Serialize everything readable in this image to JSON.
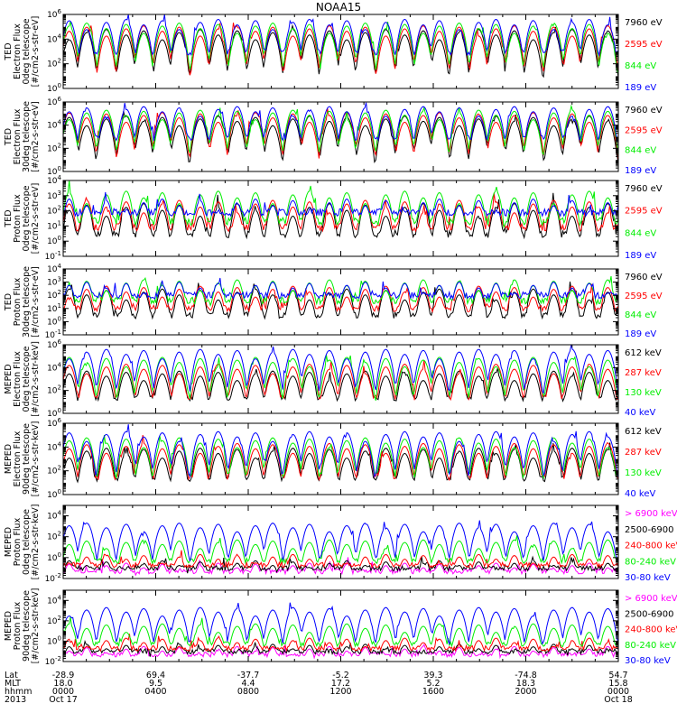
{
  "title": "NOAA15",
  "colors": {
    "black": "#000000",
    "red": "#ff0000",
    "green": "#00ee00",
    "blue": "#0000ff",
    "magenta": "#ff00ff"
  },
  "chart_data": [
    {
      "type": "line",
      "ylabel_lines": [
        "TED",
        "Electron Flux",
        "0deg telescope",
        "[#/cm2-s-str-eV]"
      ],
      "y_log": true,
      "ylim": [
        1,
        1000000
      ],
      "y_ticks": [
        1,
        100,
        10000,
        1000000
      ],
      "y_tick_labels": [
        "10^0",
        "10^2",
        "10^4",
        "10^6"
      ],
      "series": [
        {
          "name": "7960 eV",
          "color": "#000000",
          "baseline": 4,
          "peak": 60000
        },
        {
          "name": "2595 eV",
          "color": "#ff0000",
          "baseline": 10,
          "peak": 120000
        },
        {
          "name": "844 eV",
          "color": "#00ee00",
          "baseline": 20,
          "peak": 200000
        },
        {
          "name": "189 eV",
          "color": "#0000ff",
          "baseline": 800,
          "peak": 400000
        }
      ]
    },
    {
      "type": "line",
      "ylabel_lines": [
        "TED",
        "Electron Flux",
        "30deg telescope",
        "[#/cm2-s-str-eV]"
      ],
      "y_log": true,
      "ylim": [
        1,
        1000000
      ],
      "y_ticks": [
        1,
        100,
        10000,
        1000000
      ],
      "y_tick_labels": [
        "10^0",
        "10^2",
        "10^4",
        "10^6"
      ],
      "series": [
        {
          "name": "7960 eV",
          "color": "#000000",
          "baseline": 4,
          "peak": 60000
        },
        {
          "name": "2595 eV",
          "color": "#ff0000",
          "baseline": 10,
          "peak": 120000
        },
        {
          "name": "844 eV",
          "color": "#00ee00",
          "baseline": 25,
          "peak": 200000
        },
        {
          "name": "189 eV",
          "color": "#0000ff",
          "baseline": 700,
          "peak": 400000
        }
      ]
    },
    {
      "type": "line",
      "ylabel_lines": [
        "TED",
        "Proton Flux",
        "0deg telescope",
        "[#/cm2-s-str-eV]"
      ],
      "y_log": true,
      "ylim": [
        0.1,
        10000
      ],
      "y_ticks": [
        0.1,
        1,
        10,
        100,
        1000,
        10000
      ],
      "y_tick_labels": [
        "10^-1",
        "10^0",
        "10^1",
        "10^2",
        "10^3",
        "10^4"
      ],
      "series": [
        {
          "name": "7960 eV",
          "color": "#000000",
          "baseline": 3,
          "peak": 300
        },
        {
          "name": "2595 eV",
          "color": "#ff0000",
          "baseline": 8,
          "peak": 500
        },
        {
          "name": "844 eV",
          "color": "#00ee00",
          "baseline": 20,
          "peak": 2000
        },
        {
          "name": "189 eV",
          "color": "#0000ff",
          "baseline": 80,
          "peak": 600
        }
      ]
    },
    {
      "type": "line",
      "ylabel_lines": [
        "TED",
        "Proton Flux",
        "30deg telescope",
        "[#/cm2-s-str-eV]"
      ],
      "y_log": true,
      "ylim": [
        0.1,
        10000
      ],
      "y_ticks": [
        0.1,
        1,
        10,
        100,
        1000,
        10000
      ],
      "y_tick_labels": [
        "10^-1",
        "10^0",
        "10^1",
        "10^2",
        "10^3",
        "10^4"
      ],
      "series": [
        {
          "name": "7960 eV",
          "color": "#000000",
          "baseline": 3,
          "peak": 300
        },
        {
          "name": "2595 eV",
          "color": "#ff0000",
          "baseline": 10,
          "peak": 500
        },
        {
          "name": "844 eV",
          "color": "#00ee00",
          "baseline": 40,
          "peak": 1500
        },
        {
          "name": "189 eV",
          "color": "#0000ff",
          "baseline": 100,
          "peak": 1000
        }
      ]
    },
    {
      "type": "line",
      "ylabel_lines": [
        "MEPED",
        "Electron Flux",
        "0deg telescope",
        "[#/cm2-s-str-keV]"
      ],
      "y_log": true,
      "ylim": [
        1,
        1000000
      ],
      "y_ticks": [
        1,
        100,
        10000,
        1000000
      ],
      "y_tick_labels": [
        "10^0",
        "10^2",
        "10^4",
        "10^6"
      ],
      "series": [
        {
          "name": "612 keV",
          "color": "#000000",
          "baseline": 20,
          "peak": 5000
        },
        {
          "name": "287 keV",
          "color": "#ff0000",
          "baseline": 25,
          "peak": 20000
        },
        {
          "name": "130 keV",
          "color": "#00ee00",
          "baseline": 30,
          "peak": 80000
        },
        {
          "name": "40 keV",
          "color": "#0000ff",
          "baseline": 30,
          "peak": 400000
        }
      ]
    },
    {
      "type": "line",
      "ylabel_lines": [
        "MEPED",
        "Electron Flux",
        "90deg telescope",
        "[#/cm2-s-str-keV]"
      ],
      "y_log": true,
      "ylim": [
        1,
        1000000
      ],
      "y_ticks": [
        1,
        100,
        10000,
        1000000
      ],
      "y_tick_labels": [
        "10^0",
        "10^2",
        "10^4",
        "10^6"
      ],
      "series": [
        {
          "name": "612 keV",
          "color": "#000000",
          "baseline": 20,
          "peak": 8000
        },
        {
          "name": "287 keV",
          "color": "#ff0000",
          "baseline": 30,
          "peak": 20000
        },
        {
          "name": "130 keV",
          "color": "#00ee00",
          "baseline": 40,
          "peak": 60000
        },
        {
          "name": "40 keV",
          "color": "#0000ff",
          "baseline": 40,
          "peak": 200000
        }
      ]
    },
    {
      "type": "line",
      "ylabel_lines": [
        "MEPED",
        "Proton Flux",
        "0deg telescope",
        "[#/cm2-s-str-keV]"
      ],
      "y_log": true,
      "ylim": [
        0.01,
        100000
      ],
      "y_ticks": [
        0.01,
        1,
        100,
        10000
      ],
      "y_tick_labels": [
        "10^-2",
        "10^0",
        "10^2",
        "10^4"
      ],
      "series": [
        {
          "name": "> 6900 keV",
          "color": "#ff00ff",
          "baseline": 0.05,
          "peak": 0.3
        },
        {
          "name": "2500-6900",
          "color": "#000000",
          "baseline": 0.1,
          "peak": 0.5
        },
        {
          "name": "240-800 keV",
          "color": "#ff0000",
          "baseline": 0.2,
          "peak": 2
        },
        {
          "name": "80-240 keV",
          "color": "#00ee00",
          "baseline": 0.5,
          "peak": 50
        },
        {
          "name": "30-80 keV",
          "color": "#0000ff",
          "baseline": 0.8,
          "peak": 2000
        }
      ]
    },
    {
      "type": "line",
      "ylabel_lines": [
        "MEPED",
        "Proton Flux",
        "90deg telescope",
        "[#/cm2-s-str-keV]"
      ],
      "y_log": true,
      "ylim": [
        0.01,
        100000
      ],
      "y_ticks": [
        0.01,
        1,
        100,
        10000
      ],
      "y_tick_labels": [
        "10^-2",
        "10^0",
        "10^2",
        "10^4"
      ],
      "series": [
        {
          "name": "> 6900 keV",
          "color": "#ff00ff",
          "baseline": 0.05,
          "peak": 0.3
        },
        {
          "name": "2500-6900",
          "color": "#000000",
          "baseline": 0.1,
          "peak": 0.5
        },
        {
          "name": "240-800 keV",
          "color": "#ff0000",
          "baseline": 0.2,
          "peak": 2
        },
        {
          "name": "80-240 keV",
          "color": "#00ee00",
          "baseline": 0.5,
          "peak": 50
        },
        {
          "name": "30-80 keV",
          "color": "#0000ff",
          "baseline": 0.8,
          "peak": 2000
        }
      ]
    }
  ],
  "x_axis": {
    "row_labels": [
      "Lat",
      "MLT",
      "hhmm",
      "2013"
    ],
    "ticks": [
      {
        "lat": "-28.9",
        "mlt": "18.0",
        "hhmm": "0000",
        "date": "Oct 17"
      },
      {
        "lat": "69.4",
        "mlt": "9.5",
        "hhmm": "0400",
        "date": ""
      },
      {
        "lat": "-37.7",
        "mlt": "4.4",
        "hhmm": "0800",
        "date": ""
      },
      {
        "lat": "-5.2",
        "mlt": "17.2",
        "hhmm": "1200",
        "date": ""
      },
      {
        "lat": "39.3",
        "mlt": "5.2",
        "hhmm": "1600",
        "date": ""
      },
      {
        "lat": "-74.8",
        "mlt": "18.3",
        "hhmm": "2000",
        "date": ""
      },
      {
        "lat": "54.7",
        "mlt": "15.8",
        "hhmm": "0000",
        "date": "Oct 18"
      }
    ]
  }
}
